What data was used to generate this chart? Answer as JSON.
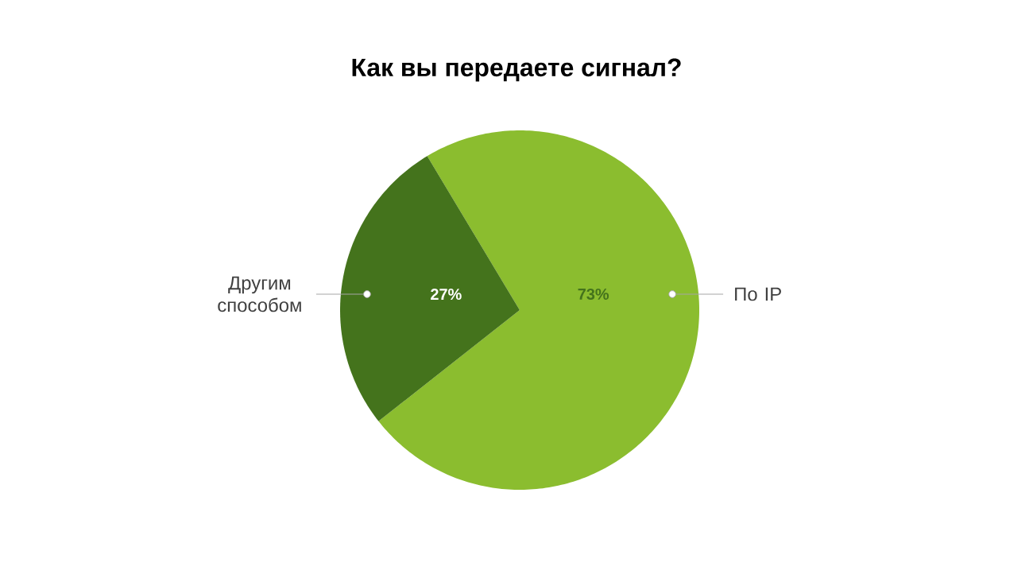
{
  "chart_data": {
    "type": "pie",
    "title": "Как вы передаете сигнал?",
    "categories": [
      "По IP",
      "Другим способом"
    ],
    "values": [
      73,
      27
    ],
    "colors": [
      "#8bbd2f",
      "#44731c"
    ],
    "value_labels": [
      "73%",
      "27%"
    ]
  }
}
